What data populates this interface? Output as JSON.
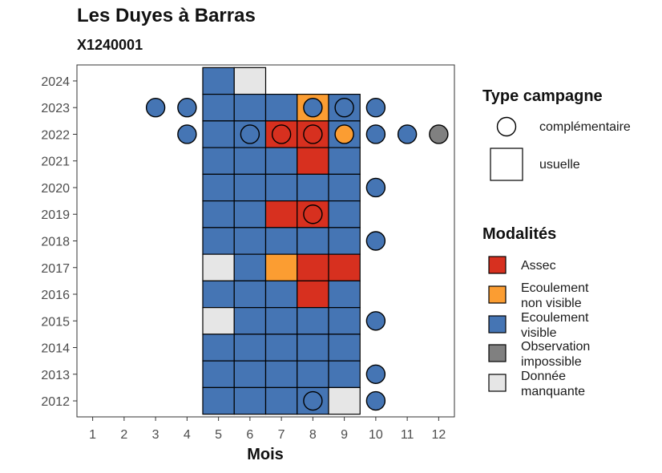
{
  "chart_data": {
    "type": "heatmap",
    "title": "Les Duyes à Barras",
    "subtitle": "X1240001",
    "xlabel": "Mois",
    "ylabel": "",
    "x_ticks": [
      1,
      2,
      3,
      4,
      5,
      6,
      7,
      8,
      9,
      10,
      11,
      12
    ],
    "y_ticks": [
      2012,
      2013,
      2014,
      2015,
      2016,
      2017,
      2018,
      2019,
      2020,
      2021,
      2022,
      2023,
      2024
    ],
    "xlim": [
      0.5,
      12.5
    ],
    "ylim": [
      2011.4,
      2024.6
    ],
    "grid": false,
    "legend_position": "right",
    "colors": {
      "assec": "#d7301f",
      "ecoulement_non_visible": "#fb9d32",
      "ecoulement_visible": "#4575b4",
      "observation_impossible": "#808080",
      "donnee_manquante": "#e6e6e6"
    },
    "legend_type": {
      "title": "Type campagne",
      "items": [
        {
          "key": "complementaire",
          "label": "complémentaire",
          "shape": "circle"
        },
        {
          "key": "usuelle",
          "label": "usuelle",
          "shape": "square"
        }
      ]
    },
    "legend_modalites": {
      "title": "Modalités",
      "items": [
        {
          "key": "assec",
          "lines": [
            "Assec"
          ]
        },
        {
          "key": "ecoulement_non_visible",
          "lines": [
            "Ecoulement",
            "non visible"
          ]
        },
        {
          "key": "ecoulement_visible",
          "lines": [
            "Ecoulement",
            "visible"
          ]
        },
        {
          "key": "observation_impossible",
          "lines": [
            "Observation",
            "impossible"
          ]
        },
        {
          "key": "donnee_manquante",
          "lines": [
            "Donnée",
            "manquante"
          ]
        }
      ]
    },
    "usuelle": [
      {
        "year": 2024,
        "month": 5,
        "v": "ecoulement_visible"
      },
      {
        "year": 2024,
        "month": 6,
        "v": "donnee_manquante"
      },
      {
        "year": 2023,
        "month": 5,
        "v": "ecoulement_visible"
      },
      {
        "year": 2023,
        "month": 6,
        "v": "ecoulement_visible"
      },
      {
        "year": 2023,
        "month": 7,
        "v": "ecoulement_visible"
      },
      {
        "year": 2023,
        "month": 8,
        "v": "ecoulement_non_visible"
      },
      {
        "year": 2023,
        "month": 9,
        "v": "ecoulement_visible"
      },
      {
        "year": 2022,
        "month": 5,
        "v": "ecoulement_visible"
      },
      {
        "year": 2022,
        "month": 6,
        "v": "ecoulement_visible"
      },
      {
        "year": 2022,
        "month": 7,
        "v": "assec"
      },
      {
        "year": 2022,
        "month": 8,
        "v": "assec"
      },
      {
        "year": 2022,
        "month": 9,
        "v": "ecoulement_visible"
      },
      {
        "year": 2021,
        "month": 5,
        "v": "ecoulement_visible"
      },
      {
        "year": 2021,
        "month": 6,
        "v": "ecoulement_visible"
      },
      {
        "year": 2021,
        "month": 7,
        "v": "ecoulement_visible"
      },
      {
        "year": 2021,
        "month": 8,
        "v": "assec"
      },
      {
        "year": 2021,
        "month": 9,
        "v": "ecoulement_visible"
      },
      {
        "year": 2020,
        "month": 5,
        "v": "ecoulement_visible"
      },
      {
        "year": 2020,
        "month": 6,
        "v": "ecoulement_visible"
      },
      {
        "year": 2020,
        "month": 7,
        "v": "ecoulement_visible"
      },
      {
        "year": 2020,
        "month": 8,
        "v": "ecoulement_visible"
      },
      {
        "year": 2020,
        "month": 9,
        "v": "ecoulement_visible"
      },
      {
        "year": 2019,
        "month": 5,
        "v": "ecoulement_visible"
      },
      {
        "year": 2019,
        "month": 6,
        "v": "ecoulement_visible"
      },
      {
        "year": 2019,
        "month": 7,
        "v": "assec"
      },
      {
        "year": 2019,
        "month": 8,
        "v": "assec"
      },
      {
        "year": 2019,
        "month": 9,
        "v": "ecoulement_visible"
      },
      {
        "year": 2018,
        "month": 5,
        "v": "ecoulement_visible"
      },
      {
        "year": 2018,
        "month": 6,
        "v": "ecoulement_visible"
      },
      {
        "year": 2018,
        "month": 7,
        "v": "ecoulement_visible"
      },
      {
        "year": 2018,
        "month": 8,
        "v": "ecoulement_visible"
      },
      {
        "year": 2018,
        "month": 9,
        "v": "ecoulement_visible"
      },
      {
        "year": 2017,
        "month": 5,
        "v": "donnee_manquante"
      },
      {
        "year": 2017,
        "month": 6,
        "v": "ecoulement_visible"
      },
      {
        "year": 2017,
        "month": 7,
        "v": "ecoulement_non_visible"
      },
      {
        "year": 2017,
        "month": 8,
        "v": "assec"
      },
      {
        "year": 2017,
        "month": 9,
        "v": "assec"
      },
      {
        "year": 2016,
        "month": 5,
        "v": "ecoulement_visible"
      },
      {
        "year": 2016,
        "month": 6,
        "v": "ecoulement_visible"
      },
      {
        "year": 2016,
        "month": 7,
        "v": "ecoulement_visible"
      },
      {
        "year": 2016,
        "month": 8,
        "v": "assec"
      },
      {
        "year": 2016,
        "month": 9,
        "v": "ecoulement_visible"
      },
      {
        "year": 2015,
        "month": 5,
        "v": "donnee_manquante"
      },
      {
        "year": 2015,
        "month": 6,
        "v": "ecoulement_visible"
      },
      {
        "year": 2015,
        "month": 7,
        "v": "ecoulement_visible"
      },
      {
        "year": 2015,
        "month": 8,
        "v": "ecoulement_visible"
      },
      {
        "year": 2015,
        "month": 9,
        "v": "ecoulement_visible"
      },
      {
        "year": 2014,
        "month": 5,
        "v": "ecoulement_visible"
      },
      {
        "year": 2014,
        "month": 6,
        "v": "ecoulement_visible"
      },
      {
        "year": 2014,
        "month": 7,
        "v": "ecoulement_visible"
      },
      {
        "year": 2014,
        "month": 8,
        "v": "ecoulement_visible"
      },
      {
        "year": 2014,
        "month": 9,
        "v": "ecoulement_visible"
      },
      {
        "year": 2013,
        "month": 5,
        "v": "ecoulement_visible"
      },
      {
        "year": 2013,
        "month": 6,
        "v": "ecoulement_visible"
      },
      {
        "year": 2013,
        "month": 7,
        "v": "ecoulement_visible"
      },
      {
        "year": 2013,
        "month": 8,
        "v": "ecoulement_visible"
      },
      {
        "year": 2013,
        "month": 9,
        "v": "ecoulement_visible"
      },
      {
        "year": 2012,
        "month": 5,
        "v": "ecoulement_visible"
      },
      {
        "year": 2012,
        "month": 6,
        "v": "ecoulement_visible"
      },
      {
        "year": 2012,
        "month": 7,
        "v": "ecoulement_visible"
      },
      {
        "year": 2012,
        "month": 8,
        "v": "ecoulement_visible"
      },
      {
        "year": 2012,
        "month": 9,
        "v": "donnee_manquante"
      }
    ],
    "complementaire": [
      {
        "year": 2023,
        "month": 3,
        "v": "ecoulement_visible"
      },
      {
        "year": 2023,
        "month": 4,
        "v": "ecoulement_visible"
      },
      {
        "year": 2023,
        "month": 8,
        "v": "ecoulement_visible"
      },
      {
        "year": 2023,
        "month": 9,
        "v": "ecoulement_visible"
      },
      {
        "year": 2023,
        "month": 10,
        "v": "ecoulement_visible"
      },
      {
        "year": 2022,
        "month": 4,
        "v": "ecoulement_visible"
      },
      {
        "year": 2022,
        "month": 6,
        "v": "ecoulement_visible"
      },
      {
        "year": 2022,
        "month": 7,
        "v": "assec"
      },
      {
        "year": 2022,
        "month": 8,
        "v": "assec"
      },
      {
        "year": 2022,
        "month": 9,
        "v": "ecoulement_non_visible"
      },
      {
        "year": 2022,
        "month": 10,
        "v": "ecoulement_visible"
      },
      {
        "year": 2022,
        "month": 11,
        "v": "ecoulement_visible"
      },
      {
        "year": 2022,
        "month": 12,
        "v": "observation_impossible"
      },
      {
        "year": 2020,
        "month": 10,
        "v": "ecoulement_visible"
      },
      {
        "year": 2019,
        "month": 8,
        "v": "assec"
      },
      {
        "year": 2018,
        "month": 10,
        "v": "ecoulement_visible"
      },
      {
        "year": 2015,
        "month": 10,
        "v": "ecoulement_visible"
      },
      {
        "year": 2013,
        "month": 10,
        "v": "ecoulement_visible"
      },
      {
        "year": 2012,
        "month": 8,
        "v": "ecoulement_visible"
      },
      {
        "year": 2012,
        "month": 10,
        "v": "ecoulement_visible"
      }
    ]
  }
}
